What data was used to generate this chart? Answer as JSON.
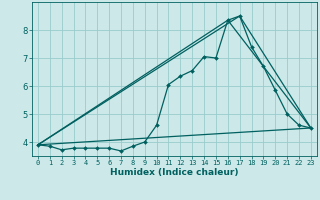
{
  "xlabel": "Humidex (Indice chaleur)",
  "bg_color": "#cce8e8",
  "line_color": "#006060",
  "grid_color": "#99cccc",
  "xlim": [
    -0.5,
    23.5
  ],
  "ylim": [
    3.5,
    9.0
  ],
  "yticks": [
    4,
    5,
    6,
    7,
    8
  ],
  "xticks": [
    0,
    1,
    2,
    3,
    4,
    5,
    6,
    7,
    8,
    9,
    10,
    11,
    12,
    13,
    14,
    15,
    16,
    17,
    18,
    19,
    20,
    21,
    22,
    23
  ],
  "line1_x": [
    0,
    1,
    2,
    3,
    4,
    5,
    6,
    7,
    8,
    9,
    10,
    11,
    12,
    13,
    14,
    15,
    16,
    17,
    18,
    19,
    20,
    21,
    22,
    23
  ],
  "line1_y": [
    3.9,
    3.85,
    3.72,
    3.78,
    3.78,
    3.78,
    3.78,
    3.68,
    3.85,
    4.0,
    4.6,
    6.05,
    6.35,
    6.55,
    7.05,
    7.0,
    8.35,
    8.5,
    7.4,
    6.7,
    5.85,
    5.0,
    4.6,
    4.5
  ],
  "line2_x": [
    0,
    23
  ],
  "line2_y": [
    3.9,
    4.5
  ],
  "line3_x": [
    0,
    16,
    23
  ],
  "line3_y": [
    3.9,
    8.35,
    4.5
  ],
  "line4_x": [
    0,
    17,
    23
  ],
  "line4_y": [
    3.9,
    8.5,
    4.5
  ]
}
